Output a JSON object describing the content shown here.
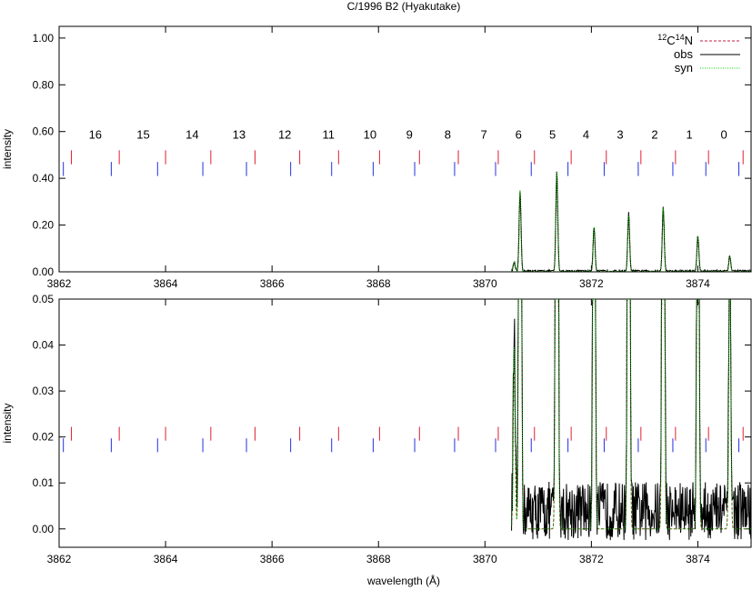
{
  "chart_data": {
    "type": "line",
    "title": "C/1996 B2 (Hyakutake)",
    "xlabel": "wavelength (Å)",
    "xlim": [
      3862,
      3875
    ],
    "x_ticks": [
      3862,
      3864,
      3866,
      3868,
      3870,
      3872,
      3874
    ],
    "legend": {
      "position": "top-right",
      "entries": [
        {
          "name_pre": "12",
          "name_mid": "C",
          "name_sup": "14",
          "name_post": "N",
          "color": "#c0203c",
          "dash": "dashed"
        },
        {
          "name": "obs",
          "color": "#000000",
          "dash": "solid"
        },
        {
          "name": "syn",
          "color": "#00cc00",
          "dash": "dotted"
        }
      ]
    },
    "band_labels": [
      "16",
      "15",
      "14",
      "13",
      "12",
      "11",
      "10",
      "9",
      "8",
      "7",
      "6",
      "5",
      "4",
      "3",
      "2",
      "1",
      "0"
    ],
    "band_label_x": [
      3862.68,
      3863.58,
      3864.5,
      3865.38,
      3866.24,
      3867.06,
      3867.84,
      3868.58,
      3869.3,
      3869.98,
      3870.63,
      3871.27,
      3871.9,
      3872.54,
      3873.19,
      3873.84,
      3874.49
    ],
    "red_ticks_x": [
      3862.23,
      3863.13,
      3864.0,
      3864.85,
      3865.68,
      3866.52,
      3867.25,
      3868.02,
      3868.77,
      3869.5,
      3870.25,
      3870.93,
      3871.62,
      3872.28,
      3872.93,
      3873.58,
      3874.2,
      3874.85
    ],
    "blue_ticks_x": [
      3862.08,
      3862.98,
      3863.85,
      3864.7,
      3865.52,
      3866.35,
      3867.12,
      3867.9,
      3868.68,
      3869.43,
      3870.2,
      3870.87,
      3871.56,
      3872.24,
      3872.88,
      3873.53,
      3874.15,
      3874.77
    ],
    "peaks": [
      {
        "x": 3870.55,
        "height": 0.039
      },
      {
        "x": 3870.66,
        "height": 0.34
      },
      {
        "x": 3871.35,
        "height": 0.42
      },
      {
        "x": 3872.05,
        "height": 0.19
      },
      {
        "x": 3872.7,
        "height": 0.24
      },
      {
        "x": 3873.35,
        "height": 0.27
      },
      {
        "x": 3874.0,
        "height": 0.15
      },
      {
        "x": 3874.6,
        "height": 0.065
      }
    ],
    "obs_start_x": 3870.5,
    "obs_noise_level": 0.008,
    "panels": [
      {
        "id": "top",
        "ylabel": "intensity",
        "ylim": [
          0,
          1.05
        ],
        "y_ticks": [
          0.0,
          0.2,
          0.4,
          0.6,
          0.8,
          1.0
        ],
        "y_tick_labels": [
          "0.00",
          "0.20",
          "0.40",
          "0.60",
          "0.80",
          "1.00"
        ],
        "red_tick_y": [
          0.46,
          0.52
        ],
        "blue_tick_y": [
          0.41,
          0.47
        ],
        "band_label_y": 0.57,
        "show_legend": true,
        "show_band_labels": true
      },
      {
        "id": "bottom",
        "ylabel": "intensity",
        "ylim": [
          -0.004,
          0.05
        ],
        "y_ticks": [
          0.0,
          0.01,
          0.02,
          0.03,
          0.04,
          0.05
        ],
        "y_tick_labels": [
          "0.00",
          "0.01",
          "0.02",
          "0.03",
          "0.04",
          "0.05"
        ],
        "red_tick_y": [
          0.0192,
          0.0222
        ],
        "blue_tick_y": [
          0.0167,
          0.0197
        ],
        "show_legend": false,
        "show_band_labels": false
      }
    ]
  }
}
